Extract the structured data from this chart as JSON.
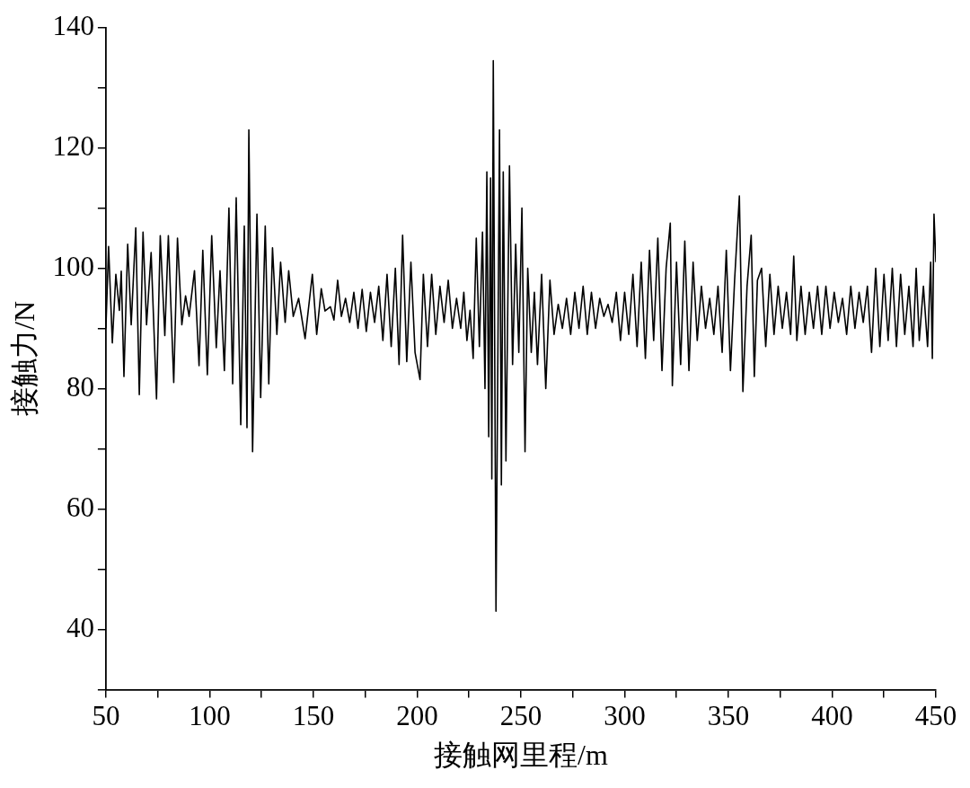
{
  "chart_data": {
    "type": "line",
    "xlabel": "接触网里程/m",
    "ylabel": "接触力/N",
    "xlim": [
      50,
      450
    ],
    "ylim": [
      30,
      140
    ],
    "xticks": [
      50,
      {
        "value": 75,
        "label": null
      },
      100,
      {
        "value": 125,
        "label": null
      },
      150,
      {
        "value": 175,
        "label": null
      },
      200,
      {
        "value": 225,
        "label": null
      },
      250,
      {
        "value": 275,
        "label": null
      },
      300,
      {
        "value": 325,
        "label": null
      },
      350,
      {
        "value": 375,
        "label": null
      },
      400,
      {
        "value": 425,
        "label": null
      },
      450
    ],
    "yticks": [
      {
        "value": 30,
        "label": null
      },
      40,
      {
        "value": 50,
        "label": null
      },
      60,
      {
        "value": 70,
        "label": null
      },
      80,
      {
        "value": 90,
        "label": null
      },
      100,
      {
        "value": 110,
        "label": null
      },
      120,
      {
        "value": 130,
        "label": null
      },
      140
    ],
    "grid": false,
    "legend": false,
    "marker": "none",
    "line_style": "solid",
    "series": [
      {
        "color": "#000000",
        "x": [
          50,
          51.3,
          53.1,
          54.8,
          56.5,
          57.4,
          58.7,
          60.5,
          62.2,
          64.4,
          66.1,
          67.9,
          69.6,
          71.8,
          74.4,
          76.2,
          78.4,
          80.1,
          82.7,
          84.5,
          86.6,
          88.4,
          90.1,
          92.7,
          94.9,
          96.7,
          98.9,
          101,
          103.2,
          105,
          107.1,
          109.3,
          111.1,
          112.8,
          115,
          116.7,
          118,
          118.9,
          120.7,
          122.8,
          124.6,
          126.8,
          128.5,
          130.3,
          132.4,
          134.2,
          136.4,
          138.1,
          140.3,
          142.9,
          146,
          149.5,
          151.6,
          153.8,
          155.6,
          158.2,
          159.9,
          161.7,
          163.5,
          165.5,
          167.5,
          169.5,
          171.5,
          173.5,
          175.5,
          177.5,
          179.5,
          181.5,
          183.5,
          185.5,
          187.5,
          189.5,
          191.3,
          193,
          195,
          197,
          199,
          201.4,
          203,
          205,
          207,
          209,
          211,
          213,
          215,
          217,
          219,
          221,
          222.5,
          224,
          225.5,
          227,
          228.5,
          230,
          231.5,
          232.7,
          233.6,
          234.5,
          235.4,
          236,
          236.7,
          238,
          239.7,
          240.6,
          241.5,
          242.8,
          244.5,
          246,
          247.5,
          249,
          250.5,
          252,
          253.3,
          255,
          256.5,
          258,
          260,
          262,
          264,
          266,
          268,
          270,
          272,
          274,
          276,
          278,
          280,
          282,
          284,
          286,
          288,
          290,
          292,
          294,
          296,
          298,
          300,
          302,
          304,
          306,
          308,
          310,
          312,
          314,
          316,
          318,
          320,
          322,
          323,
          325,
          327,
          329,
          331,
          333,
          335,
          337,
          339,
          341,
          343,
          345,
          347,
          349,
          351,
          353,
          355.3,
          357,
          359,
          361,
          362.5,
          364,
          366,
          368,
          370,
          372,
          374,
          376,
          378,
          380,
          381.5,
          383,
          385,
          387,
          389,
          391,
          393,
          395,
          397,
          399,
          401,
          403,
          405,
          407,
          409,
          411,
          413,
          415,
          417,
          419,
          421,
          423,
          425,
          427,
          429,
          431,
          433,
          435,
          437,
          439,
          440.5,
          442,
          444,
          446,
          447.5,
          448.3,
          449.1,
          450
        ],
        "values": [
          90,
          103.6,
          87.6,
          99,
          93,
          99.5,
          82,
          104,
          90.6,
          106.7,
          79,
          106,
          90.6,
          102.6,
          78.3,
          105.4,
          88.8,
          105.4,
          81,
          105,
          90.6,
          95.4,
          92,
          99.6,
          83.8,
          103,
          82.3,
          105.4,
          86.8,
          99.6,
          83,
          110,
          80.8,
          111.7,
          74,
          107,
          73.5,
          123,
          69.5,
          109,
          78.5,
          107,
          80.8,
          103.4,
          89,
          101,
          91,
          99.6,
          92,
          95,
          88.3,
          99,
          89,
          96.6,
          92.9,
          93.6,
          91.4,
          98,
          92,
          95,
          91,
          96,
          90,
          96.5,
          89.5,
          96,
          91,
          97,
          88,
          99,
          87,
          100,
          84,
          105.5,
          84.5,
          101,
          86,
          81.5,
          99,
          87,
          99,
          89,
          97,
          91,
          98,
          90,
          95,
          90,
          96,
          88,
          93,
          85,
          105,
          87,
          106,
          80,
          116,
          72,
          115,
          65,
          134.5,
          43,
          123,
          64,
          116,
          68,
          117,
          84,
          104,
          86,
          110,
          69.5,
          100,
          86,
          96,
          84,
          99,
          80,
          98,
          89,
          94,
          90,
          95,
          89,
          96,
          90,
          97,
          89,
          96,
          90,
          95,
          92,
          94,
          91,
          96,
          88,
          96,
          89,
          99,
          87,
          101,
          85,
          103,
          88,
          105,
          83,
          100,
          107.5,
          80.5,
          101,
          84,
          104.5,
          83,
          101,
          88,
          97,
          90,
          95,
          89,
          97,
          86,
          103,
          83,
          98,
          112,
          79.5,
          97,
          105.5,
          82,
          98,
          100,
          87,
          99,
          89,
          97,
          90,
          96,
          89,
          102,
          88,
          97,
          89,
          96,
          90,
          97,
          89,
          97,
          90,
          96,
          91,
          95,
          89,
          97,
          90,
          96,
          91,
          97,
          86,
          100,
          87,
          99,
          88,
          100,
          87,
          99,
          89,
          97,
          87,
          100,
          88,
          97,
          87,
          101,
          85,
          109,
          101
        ]
      }
    ]
  }
}
